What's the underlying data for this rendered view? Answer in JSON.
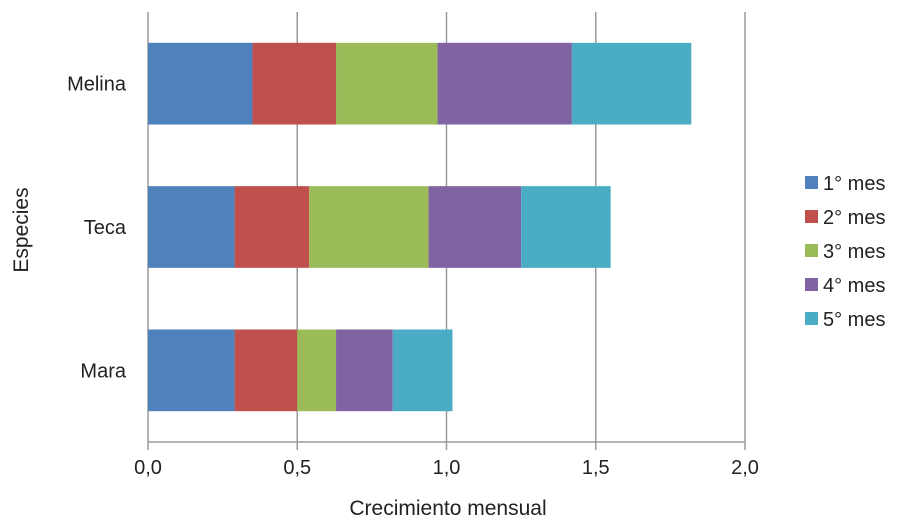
{
  "chart_data": {
    "type": "bar",
    "orientation": "horizontal",
    "stacked": true,
    "categories": [
      "Melina",
      "Teca",
      "Mara"
    ],
    "series": [
      {
        "name": "1° mes",
        "values": [
          0.35,
          0.29,
          0.29
        ],
        "color": "#4F81BD"
      },
      {
        "name": "2° mes",
        "values": [
          0.28,
          0.25,
          0.21
        ],
        "color": "#C0504D"
      },
      {
        "name": "3° mes",
        "values": [
          0.34,
          0.4,
          0.13
        ],
        "color": "#9BBB59"
      },
      {
        "name": "4° mes",
        "values": [
          0.45,
          0.31,
          0.19
        ],
        "color": "#8064A2"
      },
      {
        "name": "5° mes",
        "values": [
          0.4,
          0.3,
          0.2
        ],
        "color": "#4BACC6"
      }
    ],
    "xlabel": "Crecimiento mensual",
    "ylabel": "Especies",
    "xlim": [
      0,
      2
    ],
    "xticks": [
      "0,0",
      "0,5",
      "1,0",
      "1,5",
      "2,0"
    ],
    "grid": "vertical",
    "legend_position": "right"
  }
}
